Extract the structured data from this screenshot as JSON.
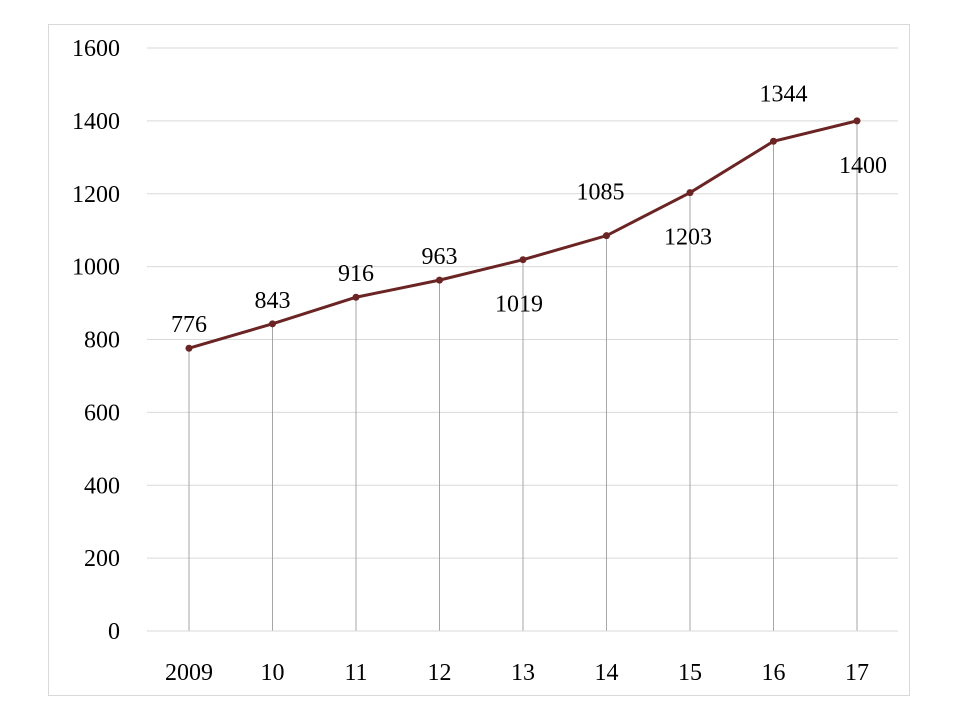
{
  "chart_data": {
    "type": "line",
    "title": "",
    "xlabel": "",
    "ylabel": "",
    "categories": [
      "2009",
      "10",
      "11",
      "12",
      "13",
      "14",
      "15",
      "16",
      "17"
    ],
    "series": [
      {
        "values": [
          776,
          843,
          916,
          963,
          1019,
          1085,
          1203,
          1344,
          1400
        ]
      }
    ],
    "data_labels": [
      "776",
      "843",
      "916",
      "963",
      "1019",
      "1085",
      "1203",
      "1344",
      "1400"
    ],
    "ylim": [
      0,
      1600
    ],
    "yticks": [
      0,
      200,
      400,
      600,
      800,
      1000,
      1200,
      1400,
      1600
    ],
    "ytick_labels": [
      "0",
      "200",
      "400",
      "600",
      "800",
      "1000",
      "1200",
      "1400",
      "1600"
    ],
    "grid": true,
    "drop_lines": true,
    "legend": "none",
    "colors": {
      "line": "#6b2424",
      "marker": "#6b2424",
      "grid": "#d9d9d9",
      "drop_line": "#a6a6a6",
      "axis": "#d9d9d9"
    }
  }
}
